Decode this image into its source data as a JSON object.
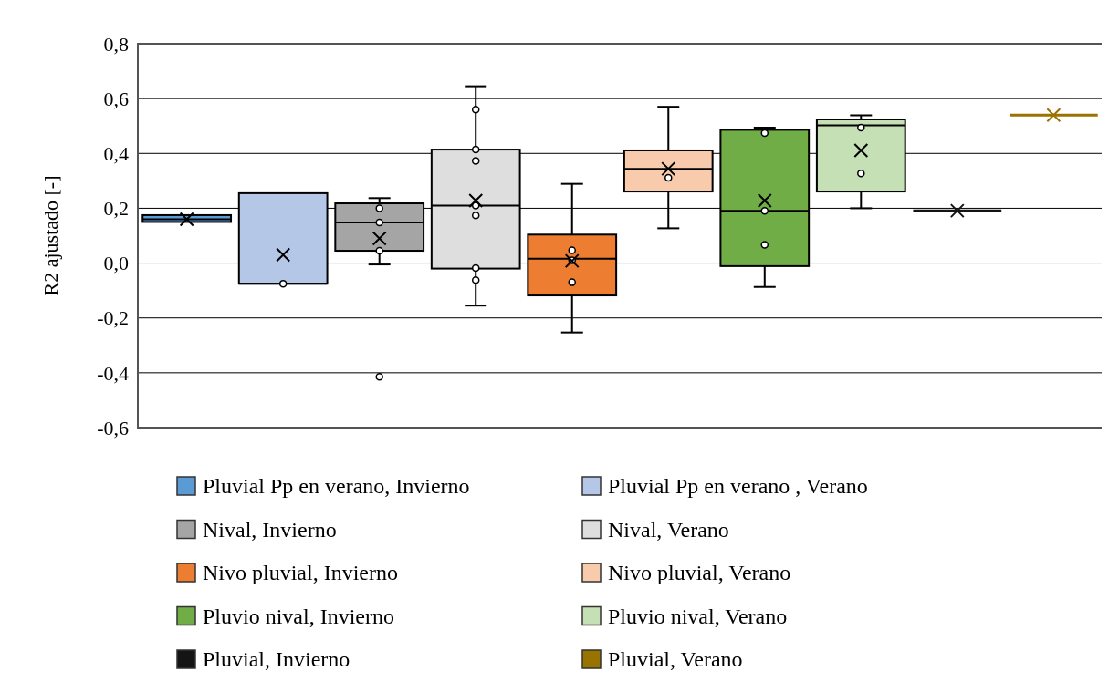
{
  "chart_data": {
    "type": "box",
    "ylabel": "R2 ajustado [-]",
    "categories": [
      null
    ],
    "ylim": [
      -0.6,
      0.8
    ],
    "yticks": [
      {
        "value": -0.6,
        "label": "-0,6"
      },
      {
        "value": -0.4,
        "label": "-0,4"
      },
      {
        "value": -0.2,
        "label": "-0,2"
      },
      {
        "value": 0,
        "label": "0,0"
      },
      {
        "value": 0.2,
        "label": "0,2"
      },
      {
        "value": 0.4,
        "label": "0,4"
      },
      {
        "value": 0.6,
        "label": "0,6"
      },
      {
        "value": 0.8,
        "label": "0,8"
      }
    ],
    "grid": "y",
    "legend": "bottom",
    "series": [
      {
        "name": "Pluvial Pp en verano, Invierno",
        "color": "#5b9bd5",
        "boxes": [
          {
            "low": 0.15,
            "q1": 0.15,
            "median": 0.16,
            "q3": 0.175,
            "high": 0.175,
            "mean": 0.16
          }
        ]
      },
      {
        "name": "Pluvial Pp en verano , Verano",
        "color": "#b4c7e7",
        "boxes": [
          {
            "low": -0.075,
            "q1": -0.075,
            "median": -0.075,
            "q3": 0.255,
            "high": 0.255,
            "mean": 0.03,
            "outliers": [
              -0.075
            ]
          }
        ]
      },
      {
        "name": "Nival, Invierno",
        "color": "#a5a5a5",
        "boxes": [
          {
            "low": -0.005,
            "q1": 0.045,
            "median": 0.148,
            "q3": 0.218,
            "high": 0.237,
            "mean": 0.09,
            "outliers": [
              0.2,
              0.148,
              0.045,
              -0.415
            ]
          }
        ]
      },
      {
        "name": "Nival, Verano",
        "color": "#dedede",
        "boxes": [
          {
            "low": -0.155,
            "q1": -0.02,
            "median": 0.21,
            "q3": 0.414,
            "high": 0.645,
            "mean": 0.228,
            "outliers": [
              0.56,
              0.414,
              0.373,
              0.21,
              0.174,
              -0.018,
              -0.062
            ]
          }
        ]
      },
      {
        "name": "Nivo pluvial, Invierno",
        "color": "#ed7d31",
        "boxes": [
          {
            "low": -0.253,
            "q1": -0.118,
            "median": 0.016,
            "q3": 0.104,
            "high": 0.289,
            "mean": 0.008,
            "outliers": [
              0.047,
              0.01,
              -0.07
            ]
          }
        ]
      },
      {
        "name": "Nivo pluvial, Verano",
        "color": "#f8cbad",
        "boxes": [
          {
            "low": 0.127,
            "q1": 0.261,
            "median": 0.344,
            "q3": 0.411,
            "high": 0.57,
            "mean": 0.344,
            "outliers": [
              0.311
            ]
          }
        ]
      },
      {
        "name": "Pluvio nival, Invierno",
        "color": "#70ad47",
        "boxes": [
          {
            "low": -0.087,
            "q1": -0.011,
            "median": 0.191,
            "q3": 0.486,
            "high": 0.494,
            "mean": 0.228,
            "outliers": [
              0.474,
              0.191,
              0.067
            ]
          }
        ]
      },
      {
        "name": "Pluvio nival, Verano",
        "color": "#c5e0b4",
        "boxes": [
          {
            "low": 0.2,
            "q1": 0.261,
            "median": 0.502,
            "q3": 0.524,
            "high": 0.539,
            "mean": 0.411,
            "outliers": [
              0.494,
              0.327
            ]
          }
        ]
      },
      {
        "name": "Pluvial, Invierno",
        "color": "#141414",
        "boxes": [
          {
            "low": 0.191,
            "q1": 0.191,
            "median": 0.191,
            "q3": 0.191,
            "high": 0.191,
            "mean": 0.191
          }
        ]
      },
      {
        "name": "Pluvial, Verano",
        "color": "#997300",
        "boxes": [
          {
            "low": 0.54,
            "q1": 0.54,
            "median": 0.54,
            "q3": 0.54,
            "high": 0.54,
            "mean": 0.54
          }
        ]
      }
    ]
  }
}
